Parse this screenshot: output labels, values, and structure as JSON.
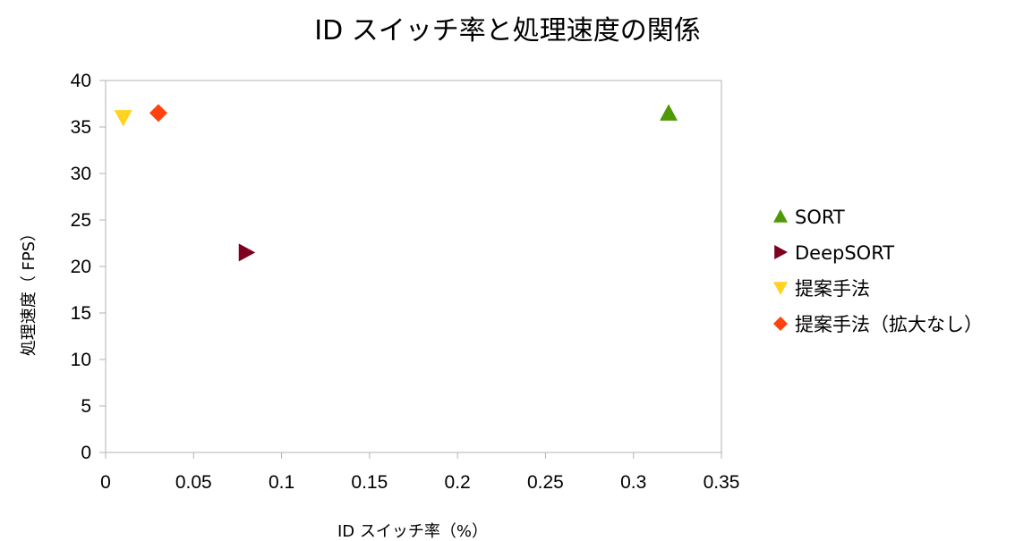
{
  "chart_data": {
    "type": "scatter",
    "title": "ID スイッチ率と処理速度の関係",
    "xlabel": "ID スイッチ率（%）",
    "ylabel": "処理速度（ FPS）",
    "xlim": [
      0,
      0.35
    ],
    "ylim": [
      0,
      40
    ],
    "x_ticks": [
      "0",
      "0.05",
      "0.1",
      "0.15",
      "0.2",
      "0.25",
      "0.3",
      "0.35"
    ],
    "x_tick_values": [
      0,
      0.05,
      0.1,
      0.15,
      0.2,
      0.25,
      0.3,
      0.35
    ],
    "y_ticks": [
      "0",
      "5",
      "10",
      "15",
      "20",
      "25",
      "30",
      "35",
      "40"
    ],
    "y_tick_values": [
      0,
      5,
      10,
      15,
      20,
      25,
      30,
      35,
      40
    ],
    "grid": false,
    "legend_position": "right",
    "series": [
      {
        "name": "SORT",
        "x": 0.32,
        "y": 36.5,
        "marker": "triangle-up",
        "color": "#4e9a06"
      },
      {
        "name": "DeepSORT",
        "x": 0.08,
        "y": 21.5,
        "marker": "triangle-right",
        "color": "#7e0021"
      },
      {
        "name": "提案手法",
        "x": 0.01,
        "y": 36.0,
        "marker": "triangle-down",
        "color": "#ffd320"
      },
      {
        "name": "提案手法（拡大なし）",
        "x": 0.03,
        "y": 36.5,
        "marker": "diamond",
        "color": "#ff420e"
      }
    ]
  }
}
